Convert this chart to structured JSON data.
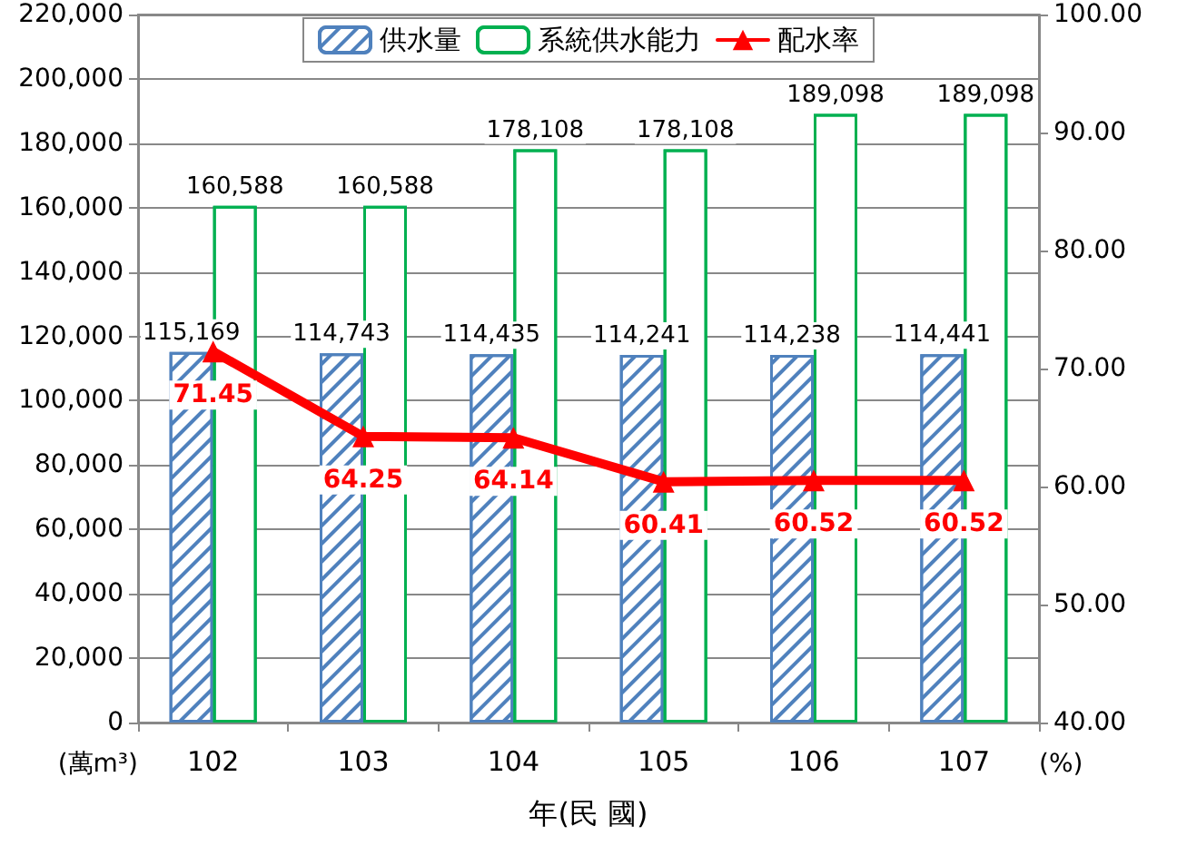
{
  "chart_data": {
    "type": "bar",
    "categories": [
      "102",
      "103",
      "104",
      "105",
      "106",
      "107"
    ],
    "xlabel": "年(民 國)",
    "ylabel": "(萬m³)",
    "y2label": "(%)",
    "series": [
      {
        "name": "供水量",
        "color": "#4f81bd",
        "values": [
          115169,
          114743,
          114435,
          114241,
          114238,
          114441
        ],
        "value_labels": [
          "115,169",
          "114,743",
          "114,435",
          "114,241",
          "114,238",
          "114,441"
        ]
      },
      {
        "name": "系統供水能力",
        "color": "#00b050",
        "values": [
          160588,
          160588,
          178108,
          178108,
          189098,
          189098
        ],
        "value_labels": [
          "160,588",
          "160,588",
          "178,108",
          "178,108",
          "189,098",
          "189,098"
        ]
      },
      {
        "name": "配水率",
        "type": "line",
        "axis": "y2",
        "color": "#ff0000",
        "marker": "triangle",
        "values": [
          71.45,
          64.25,
          64.14,
          60.41,
          60.52,
          60.52
        ],
        "value_labels": [
          "71.45",
          "64.25",
          "64.14",
          "60.41",
          "60.52",
          "60.52"
        ]
      }
    ],
    "ylim": [
      0,
      220000
    ],
    "yticks": [
      {
        "value": 0,
        "label": "0"
      },
      {
        "value": 20000,
        "label": "20,000"
      },
      {
        "value": 40000,
        "label": "40,000"
      },
      {
        "value": 60000,
        "label": "60,000"
      },
      {
        "value": 80000,
        "label": "80,000"
      },
      {
        "value": 100000,
        "label": "100,000"
      },
      {
        "value": 120000,
        "label": "120,000"
      },
      {
        "value": 140000,
        "label": "140,000"
      },
      {
        "value": 160000,
        "label": "160,000"
      },
      {
        "value": 180000,
        "label": "180,000"
      },
      {
        "value": 200000,
        "label": "200,000"
      },
      {
        "value": 220000,
        "label": "220,000"
      }
    ],
    "y2lim": [
      40,
      100
    ],
    "y2ticks": [
      {
        "value": 40,
        "label": "40.00"
      },
      {
        "value": 50,
        "label": "50.00"
      },
      {
        "value": 60,
        "label": "60.00"
      },
      {
        "value": 70,
        "label": "70.00"
      },
      {
        "value": 80,
        "label": "80.00"
      },
      {
        "value": 90,
        "label": "90.00"
      },
      {
        "value": 100,
        "label": "100.00"
      }
    ],
    "grid": "y",
    "legend": "top"
  }
}
